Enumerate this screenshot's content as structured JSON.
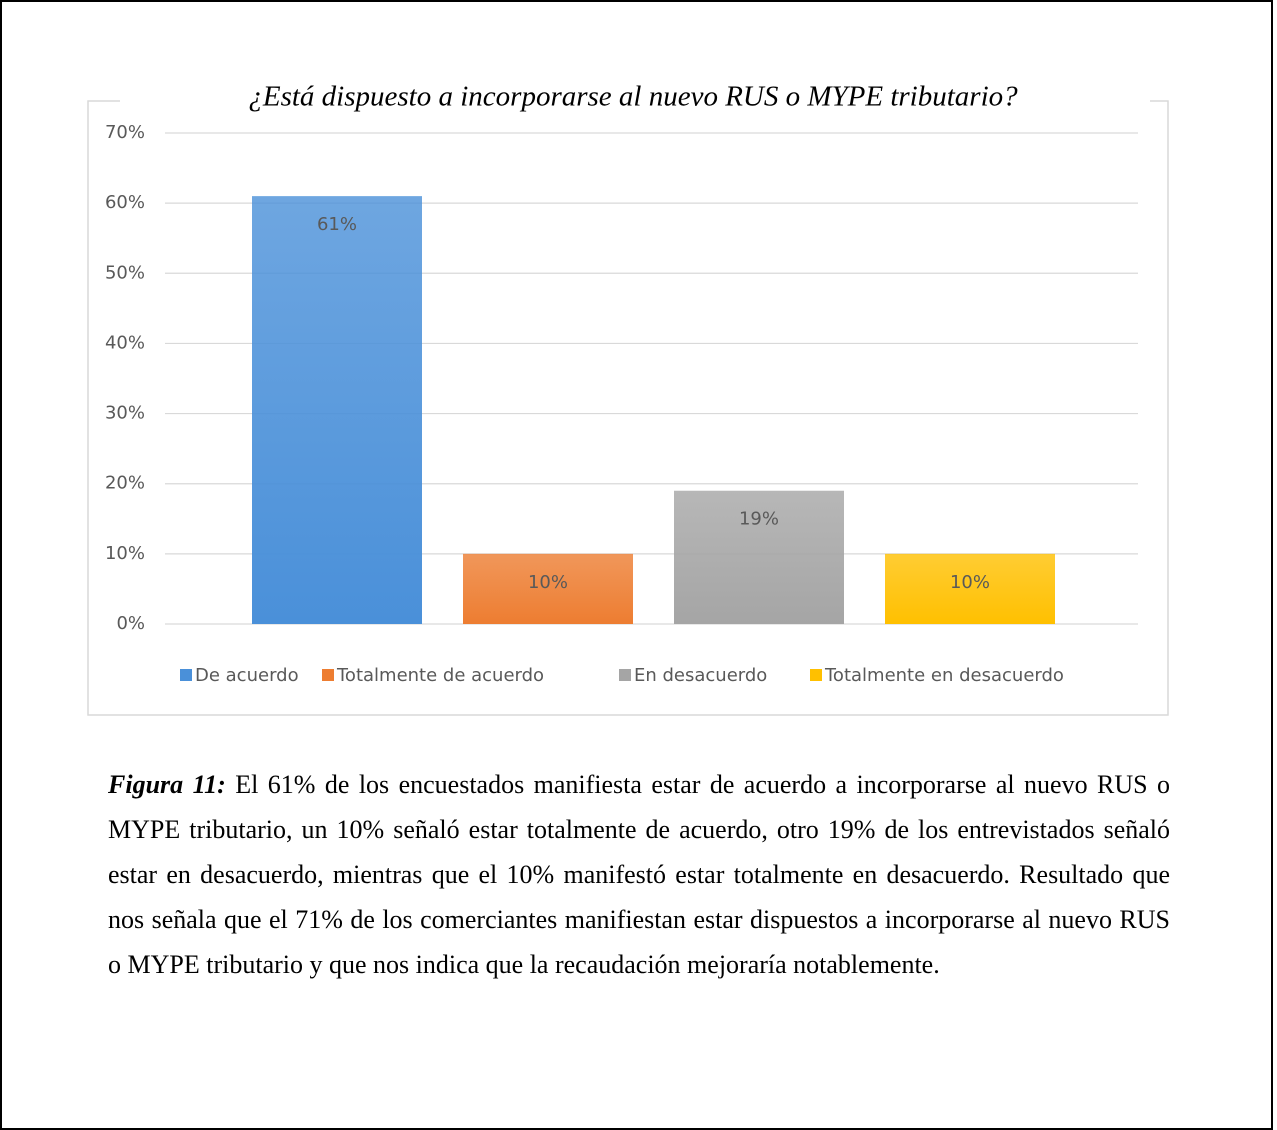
{
  "chart_data": {
    "type": "bar",
    "title": "¿Está dispuesto a incorporarse al nuevo RUS o MYPE tributario?",
    "categories": [
      "De acuerdo",
      "Totalmente de acuerdo",
      "En desacuerdo",
      "Totalmente en desacuerdo"
    ],
    "values": [
      61,
      10,
      19,
      10
    ],
    "value_labels": [
      "61%",
      "10%",
      "19%",
      "10%"
    ],
    "colors": [
      "#4a90d9",
      "#ed7d31",
      "#a5a5a5",
      "#ffc000"
    ],
    "ylim": [
      0,
      70
    ],
    "yticks": [
      {
        "value": 0,
        "label": "0%"
      },
      {
        "value": 10,
        "label": "10%"
      },
      {
        "value": 20,
        "label": "20%"
      },
      {
        "value": 30,
        "label": "30%"
      },
      {
        "value": 40,
        "label": "40%"
      },
      {
        "value": 50,
        "label": "50%"
      },
      {
        "value": 60,
        "label": "60%"
      },
      {
        "value": 70,
        "label": "70%"
      }
    ],
    "grid": true,
    "legend": "bottom"
  },
  "caption": {
    "label": "Figura 11:",
    "text": "El 61% de los encuestados manifiesta estar de acuerdo a incorporarse al nuevo RUS o MYPE tributario, un 10% señaló estar totalmente de acuerdo, otro 19% de los entrevistados señaló estar en desacuerdo, mientras que el 10% manifestó estar totalmente en desacuerdo. Resultado que nos señala que el 71% de los comerciantes manifiestan estar dispuestos a incorporarse al nuevo RUS o MYPE tributario y que nos indica que la recaudación mejoraría notablemente."
  }
}
